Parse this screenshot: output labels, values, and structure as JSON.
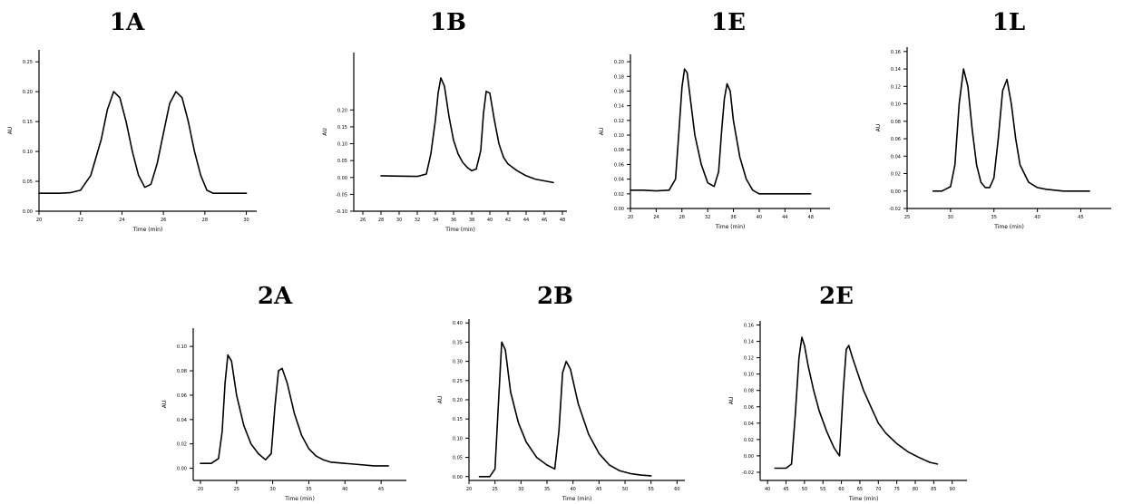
{
  "chart_data": [
    {
      "id": "1A",
      "type": "line",
      "title": "1A",
      "xlabel": "Time (min)",
      "ylabel": "AU",
      "xlim": [
        20,
        30.5
      ],
      "ylim": [
        0,
        0.27
      ],
      "xticks": [
        20,
        22,
        24,
        26,
        28,
        30
      ],
      "xtick_labels": [
        "20",
        "22",
        "24",
        "26",
        "28",
        "30"
      ],
      "yticks": [
        0,
        0.05,
        0.1,
        0.15,
        0.2,
        0.25
      ],
      "ytick_labels": [
        "0.00",
        "0.05",
        "0.10",
        "0.15",
        "0.20",
        "0.25"
      ],
      "series": [
        {
          "x": [
            20,
            21,
            21.5,
            22,
            22.5,
            23,
            23.3,
            23.6,
            23.9,
            24.2,
            24.5,
            24.8,
            25.1,
            25.4,
            25.7,
            26,
            26.3,
            26.6,
            26.9,
            27.2,
            27.5,
            27.8,
            28.1,
            28.4,
            28.8,
            29.2,
            29.6,
            30
          ],
          "y": [
            0.03,
            0.03,
            0.031,
            0.035,
            0.06,
            0.12,
            0.17,
            0.2,
            0.19,
            0.15,
            0.1,
            0.06,
            0.04,
            0.045,
            0.08,
            0.13,
            0.18,
            0.2,
            0.19,
            0.15,
            0.1,
            0.06,
            0.035,
            0.03,
            0.03,
            0.03,
            0.03,
            0.03
          ]
        }
      ]
    },
    {
      "id": "1B",
      "type": "line",
      "title": "1B",
      "xlabel": "Time (min)",
      "ylabel": "AU",
      "xlim": [
        25,
        48.5
      ],
      "ylim": [
        -0.1,
        0.37
      ],
      "xticks": [
        26,
        28,
        30,
        32,
        34,
        36,
        38,
        40,
        42,
        44,
        46,
        48
      ],
      "xtick_labels": [
        "26",
        "28",
        "30",
        "32",
        "34",
        "36",
        "38",
        "40",
        "42",
        "44",
        "46",
        "48"
      ],
      "yticks": [
        -0.1,
        -0.05,
        0,
        0.05,
        0.1,
        0.15,
        0.2
      ],
      "ytick_labels": [
        "-0.10",
        "-0.05",
        "0.00",
        "0.05",
        "0.10",
        "0.15",
        "0.20"
      ],
      "series": [
        {
          "x": [
            28,
            30,
            32,
            33,
            33.5,
            34,
            34.3,
            34.6,
            35,
            35.5,
            36,
            36.5,
            37,
            37.5,
            38,
            38.5,
            39,
            39.3,
            39.6,
            40,
            40.5,
            41,
            41.5,
            42,
            43,
            44,
            45,
            46,
            47
          ],
          "y": [
            0.005,
            0.004,
            0.003,
            0.01,
            0.07,
            0.17,
            0.25,
            0.295,
            0.27,
            0.18,
            0.11,
            0.07,
            0.045,
            0.03,
            0.02,
            0.025,
            0.08,
            0.19,
            0.255,
            0.25,
            0.17,
            0.1,
            0.06,
            0.04,
            0.02,
            0.005,
            -0.005,
            -0.01,
            -0.015
          ]
        }
      ]
    },
    {
      "id": "1E",
      "type": "line",
      "title": "1E",
      "xlabel": "Time (min)",
      "ylabel": "AU",
      "xlim": [
        20,
        51
      ],
      "ylim": [
        0,
        0.21
      ],
      "xticks": [
        20,
        24,
        28,
        32,
        36,
        40,
        44,
        48
      ],
      "xtick_labels": [
        "20",
        "24",
        "28",
        "32",
        "36",
        "40",
        "44",
        "48"
      ],
      "yticks": [
        0,
        0.02,
        0.04,
        0.06,
        0.08,
        0.1,
        0.12,
        0.14,
        0.16,
        0.18,
        0.2
      ],
      "ytick_labels": [
        "0.00",
        "0.02",
        "0.04",
        "0.06",
        "0.08",
        "0.10",
        "0.12",
        "0.14",
        "0.16",
        "0.18",
        "0.20"
      ],
      "series": [
        {
          "x": [
            20,
            22,
            24,
            26,
            27,
            27.5,
            28,
            28.4,
            28.8,
            29.3,
            30,
            31,
            32,
            33,
            33.7,
            34.2,
            34.6,
            35,
            35.5,
            36,
            37,
            38,
            39,
            40,
            42,
            44,
            46,
            48
          ],
          "y": [
            0.025,
            0.025,
            0.024,
            0.025,
            0.04,
            0.1,
            0.165,
            0.19,
            0.185,
            0.15,
            0.1,
            0.06,
            0.035,
            0.03,
            0.05,
            0.11,
            0.15,
            0.17,
            0.16,
            0.12,
            0.07,
            0.04,
            0.025,
            0.02,
            0.02,
            0.02,
            0.02,
            0.02
          ]
        }
      ]
    },
    {
      "id": "1L",
      "type": "line",
      "title": "1L",
      "xlabel": "Time (min)",
      "ylabel": "AU",
      "xlim": [
        25,
        48.5
      ],
      "ylim": [
        -0.02,
        0.165
      ],
      "xticks": [
        25,
        30,
        35,
        40,
        45
      ],
      "xtick_labels": [
        "25",
        "30",
        "35",
        "40",
        "45"
      ],
      "yticks": [
        -0.02,
        0,
        0.02,
        0.04,
        0.06,
        0.08,
        0.1,
        0.12,
        0.14,
        0.16
      ],
      "ytick_labels": [
        "-0.02",
        "0.00",
        "0.02",
        "0.04",
        "0.06",
        "0.08",
        "0.10",
        "0.12",
        "0.14",
        "0.16"
      ],
      "series": [
        {
          "x": [
            28,
            29,
            30,
            30.5,
            31,
            31.5,
            32,
            32.5,
            33,
            33.5,
            34,
            34.5,
            35,
            35.5,
            36,
            36.5,
            37,
            37.5,
            38,
            39,
            40,
            41,
            42,
            43,
            44,
            45,
            46
          ],
          "y": [
            0.0,
            0.0,
            0.005,
            0.03,
            0.1,
            0.14,
            0.12,
            0.07,
            0.03,
            0.01,
            0.004,
            0.004,
            0.015,
            0.06,
            0.115,
            0.128,
            0.1,
            0.06,
            0.03,
            0.01,
            0.004,
            0.002,
            0.001,
            0.0,
            0.0,
            0.0,
            0.0
          ]
        }
      ]
    },
    {
      "id": "2A",
      "type": "line",
      "title": "2A",
      "xlabel": "Time (min)",
      "ylabel": "AU",
      "xlim": [
        19,
        48.5
      ],
      "ylim": [
        -0.01,
        0.115
      ],
      "xticks": [
        20,
        25,
        30,
        35,
        40,
        45
      ],
      "xtick_labels": [
        "20",
        "25",
        "30",
        "35",
        "40",
        "45"
      ],
      "yticks": [
        0,
        0.02,
        0.04,
        0.06,
        0.08,
        0.1
      ],
      "ytick_labels": [
        "0.00",
        "0.02",
        "0.04",
        "0.06",
        "0.08",
        "0.10"
      ],
      "series": [
        {
          "x": [
            20,
            21.5,
            22.5,
            23,
            23.4,
            23.8,
            24.3,
            25,
            26,
            27,
            28,
            29,
            29.8,
            30.3,
            30.8,
            31.3,
            32,
            33,
            34,
            35,
            36,
            37,
            38,
            40,
            42,
            44,
            46
          ],
          "y": [
            0.004,
            0.004,
            0.008,
            0.03,
            0.07,
            0.093,
            0.088,
            0.06,
            0.035,
            0.02,
            0.012,
            0.007,
            0.012,
            0.05,
            0.08,
            0.082,
            0.07,
            0.045,
            0.027,
            0.016,
            0.01,
            0.007,
            0.005,
            0.004,
            0.003,
            0.002,
            0.002
          ]
        }
      ]
    },
    {
      "id": "2B",
      "type": "line",
      "title": "2B",
      "xlabel": "Time (min)",
      "ylabel": "AU",
      "xlim": [
        20,
        61.5
      ],
      "ylim": [
        -0.01,
        0.41
      ],
      "xticks": [
        20,
        25,
        30,
        35,
        40,
        45,
        50,
        55,
        60
      ],
      "xtick_labels": [
        "20",
        "25",
        "30",
        "35",
        "40",
        "45",
        "50",
        "55",
        "60"
      ],
      "yticks": [
        0,
        0.05,
        0.1,
        0.15,
        0.2,
        0.25,
        0.3,
        0.35,
        0.4
      ],
      "ytick_labels": [
        "0.00",
        "0.05",
        "0.10",
        "0.15",
        "0.20",
        "0.25",
        "0.30",
        "0.35",
        "0.40"
      ],
      "series": [
        {
          "x": [
            22,
            24,
            25,
            25.7,
            26.3,
            27,
            28,
            29.5,
            31,
            33,
            35,
            36.5,
            37.3,
            38,
            38.7,
            39.5,
            41,
            43,
            45,
            47,
            49,
            51,
            53,
            55
          ],
          "y": [
            0.0,
            0.0,
            0.02,
            0.2,
            0.35,
            0.33,
            0.22,
            0.14,
            0.09,
            0.05,
            0.03,
            0.02,
            0.12,
            0.27,
            0.3,
            0.28,
            0.19,
            0.11,
            0.06,
            0.03,
            0.015,
            0.008,
            0.004,
            0.002
          ]
        }
      ]
    },
    {
      "id": "2E",
      "type": "line",
      "title": "2E",
      "xlabel": "Time (min)",
      "ylabel": "AU",
      "xlim": [
        38,
        94
      ],
      "ylim": [
        -0.03,
        0.165
      ],
      "xticks": [
        40,
        45,
        50,
        55,
        60,
        65,
        70,
        75,
        80,
        85,
        90
      ],
      "xtick_labels": [
        "40",
        "45",
        "50",
        "55",
        "60",
        "65",
        "70",
        "75",
        "80",
        "85",
        "90"
      ],
      "yticks": [
        -0.02,
        0,
        0.02,
        0.04,
        0.06,
        0.08,
        0.1,
        0.12,
        0.14,
        0.16
      ],
      "ytick_labels": [
        "-0.02",
        "0.00",
        "0.02",
        "0.04",
        "0.06",
        "0.08",
        "0.10",
        "0.12",
        "0.14",
        "0.16"
      ],
      "series": [
        {
          "x": [
            42,
            45,
            46.5,
            47.5,
            48.5,
            49.3,
            50,
            51,
            52.5,
            54,
            56,
            58,
            59.5,
            60.5,
            61.3,
            62,
            63,
            64.5,
            66,
            68,
            70,
            72,
            75,
            78,
            81,
            84,
            86
          ],
          "y": [
            -0.015,
            -0.015,
            -0.01,
            0.05,
            0.12,
            0.145,
            0.135,
            0.11,
            0.08,
            0.055,
            0.03,
            0.01,
            0.0,
            0.08,
            0.13,
            0.135,
            0.12,
            0.1,
            0.08,
            0.06,
            0.04,
            0.028,
            0.015,
            0.005,
            -0.002,
            -0.008,
            -0.01
          ]
        }
      ]
    }
  ]
}
